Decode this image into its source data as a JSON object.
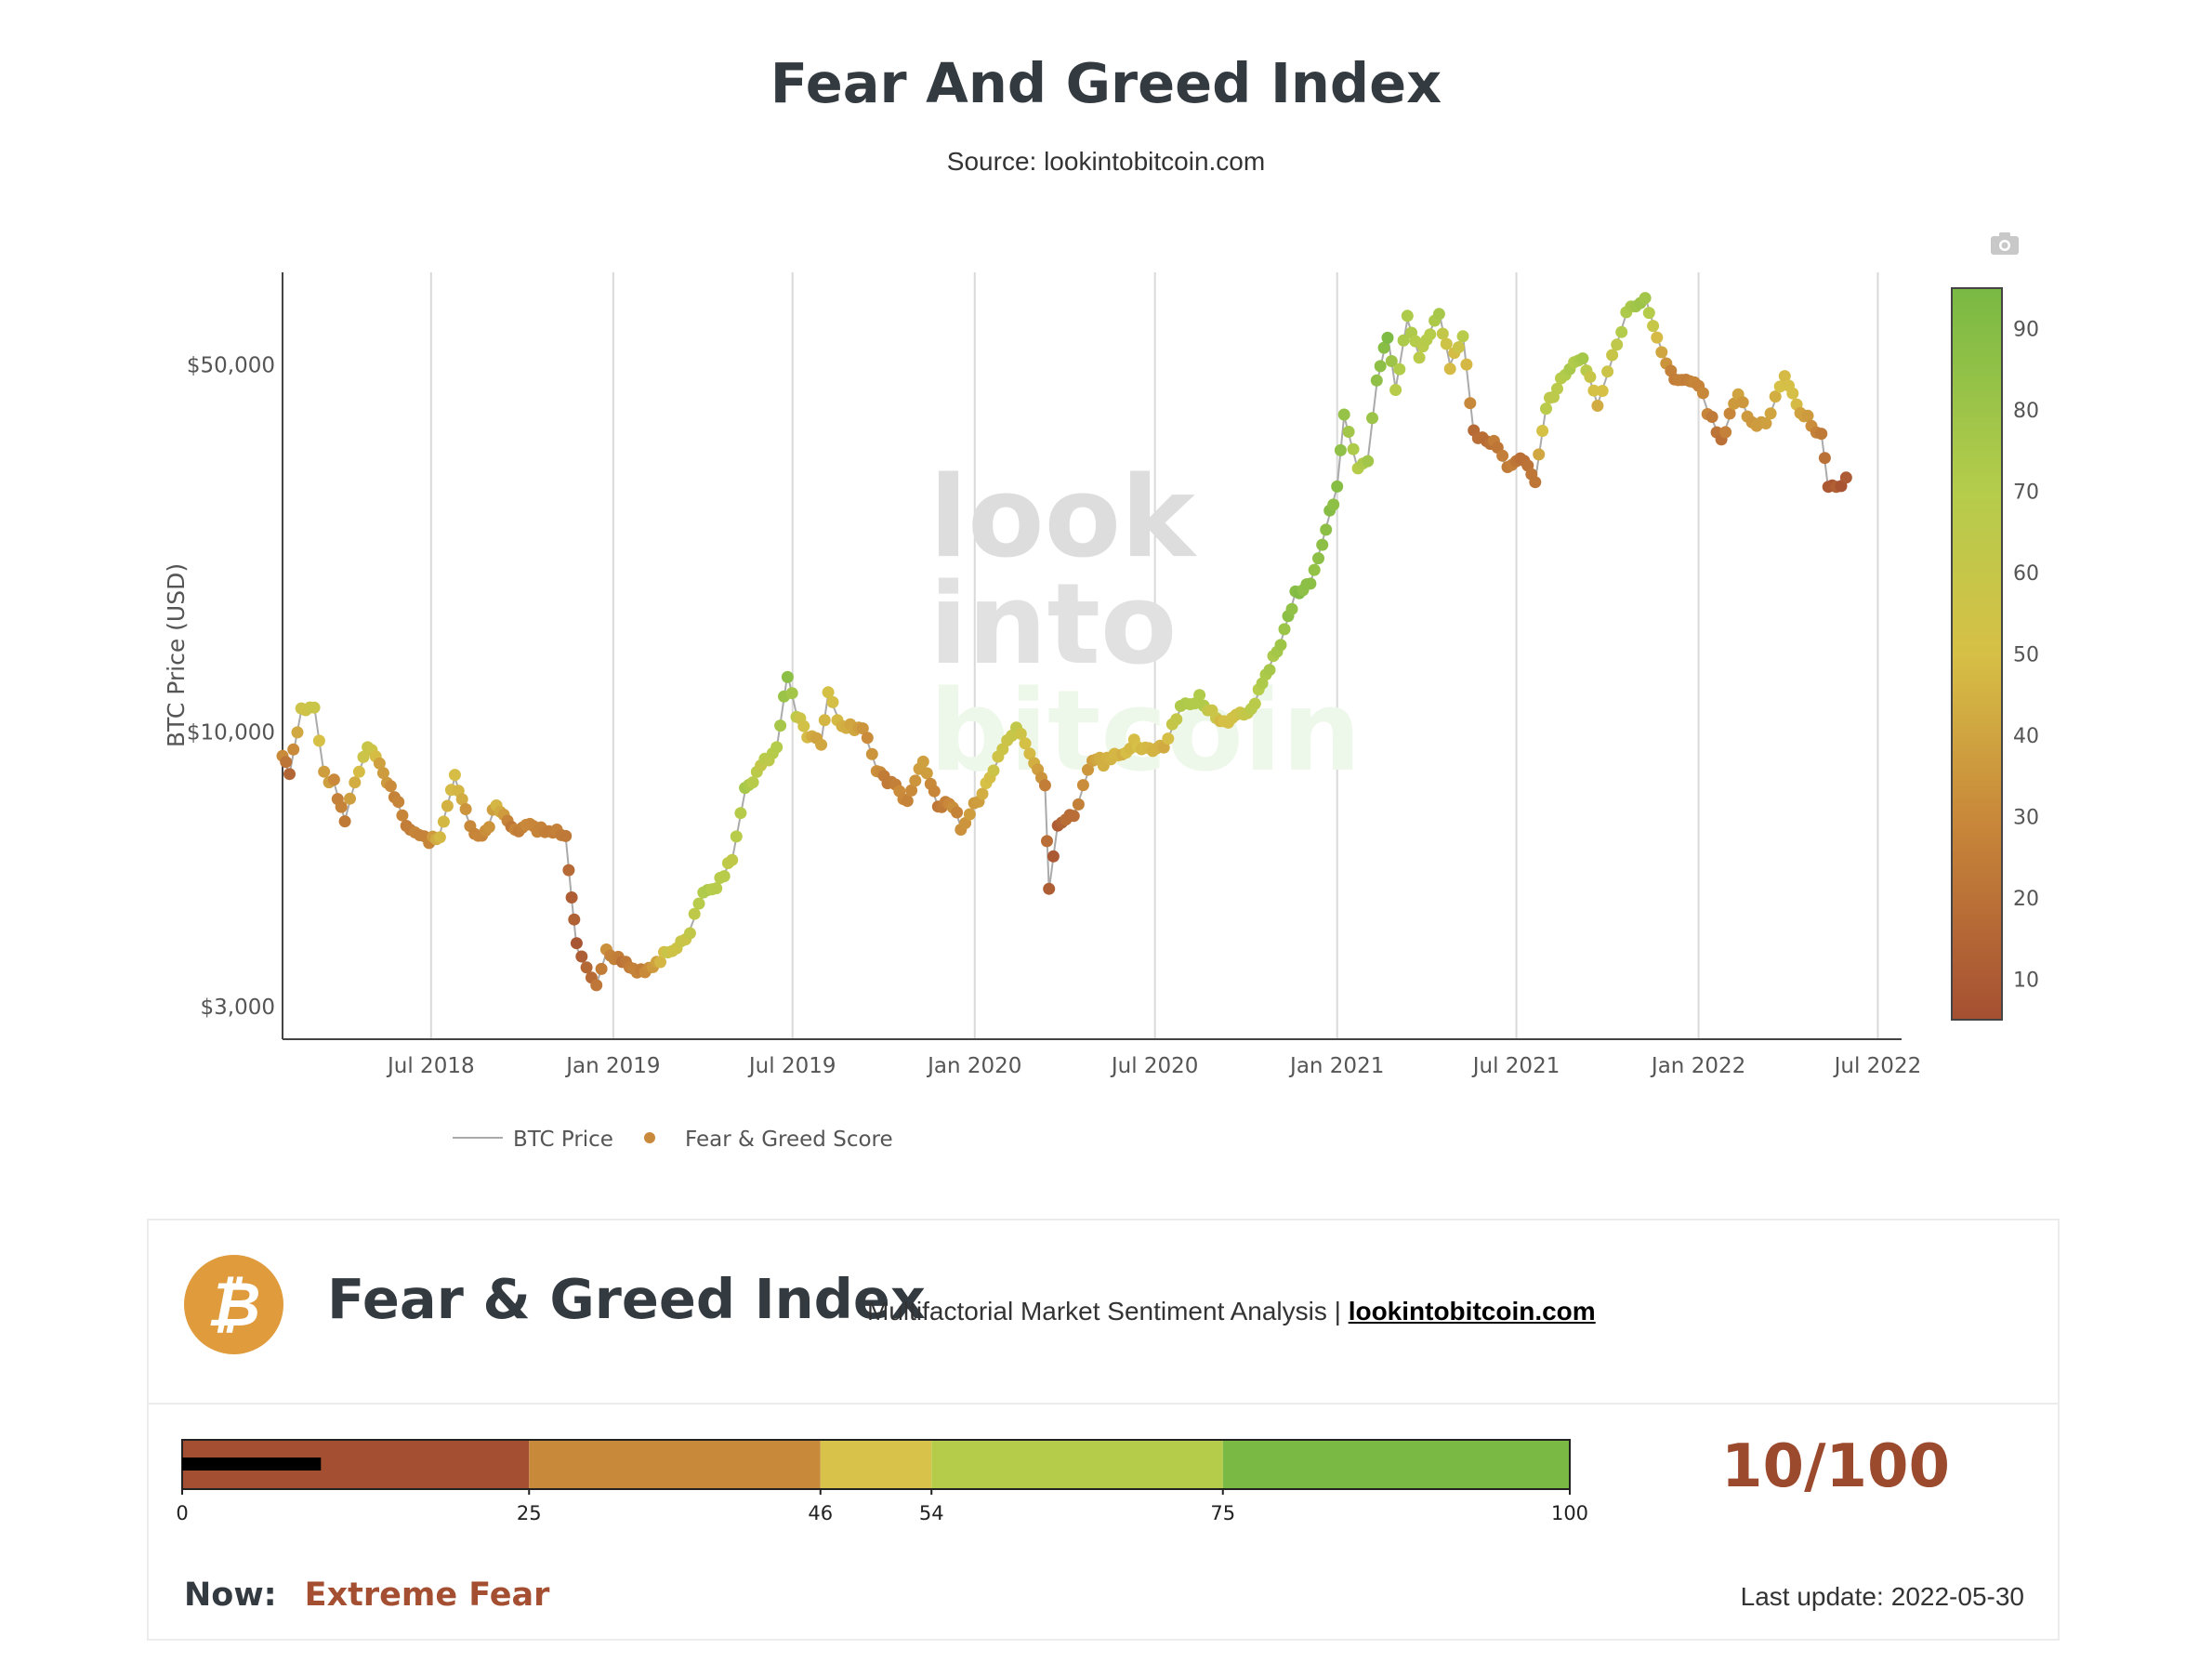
{
  "header": {
    "title": "Fear And Greed Index",
    "subtitle": "Source: lookintobitcoin.com"
  },
  "watermark": "lookintobitcoin",
  "chart_data": {
    "type": "line",
    "title": "Fear And Greed Index",
    "ylabel": "BTC Price (USD)",
    "yscale": "log",
    "ylim": [
      2600,
      75000
    ],
    "xlim": [
      "2018-02-01",
      "2022-07-25"
    ],
    "yticks": [
      3000,
      10000,
      50000
    ],
    "ytick_labels": [
      "$3,000",
      "$10,000",
      "$50,000"
    ],
    "xticks": [
      "2018-07-01",
      "2019-01-01",
      "2019-07-01",
      "2020-01-01",
      "2020-07-01",
      "2021-01-01",
      "2021-07-01",
      "2022-01-01",
      "2022-07-01"
    ],
    "xtick_labels": [
      "Jul 2018",
      "Jan 2019",
      "Jul 2019",
      "Jan 2020",
      "Jul 2020",
      "Jan 2021",
      "Jul 2021",
      "Jan 2022",
      "Jul 2022"
    ],
    "grid": true,
    "legend_position": "bottom-left",
    "colorbar": {
      "ticks": [
        10,
        20,
        30,
        40,
        50,
        60,
        70,
        80,
        90
      ],
      "range": [
        5,
        95
      ],
      "color_stops": [
        {
          "value": 5,
          "color": "#a54f32"
        },
        {
          "value": 30,
          "color": "#c9893a"
        },
        {
          "value": 50,
          "color": "#d6c046"
        },
        {
          "value": 70,
          "color": "#b5cc4b"
        },
        {
          "value": 95,
          "color": "#79b944"
        }
      ]
    },
    "series": [
      {
        "name": "BTC Price",
        "mode": "line",
        "color": "#999999",
        "x": [
          "2018-02-01",
          "2018-02-08",
          "2018-02-20",
          "2018-03-05",
          "2018-03-15",
          "2018-03-25",
          "2018-04-05",
          "2018-04-15",
          "2018-04-28",
          "2018-05-10",
          "2018-05-25",
          "2018-06-10",
          "2018-06-29",
          "2018-07-10",
          "2018-07-25",
          "2018-08-05",
          "2018-08-14",
          "2018-08-25",
          "2018-09-05",
          "2018-09-20",
          "2018-10-05",
          "2018-10-20",
          "2018-11-05",
          "2018-11-14",
          "2018-11-20",
          "2018-11-25",
          "2018-12-05",
          "2018-12-15",
          "2018-12-25",
          "2019-01-10",
          "2019-01-25",
          "2019-02-10",
          "2019-02-25",
          "2019-03-15",
          "2019-04-02",
          "2019-04-15",
          "2019-05-01",
          "2019-05-14",
          "2019-05-30",
          "2019-06-15",
          "2019-06-26",
          "2019-07-05",
          "2019-07-16",
          "2019-07-30",
          "2019-08-06",
          "2019-08-20",
          "2019-09-10",
          "2019-09-24",
          "2019-10-05",
          "2019-10-25",
          "2019-11-10",
          "2019-11-25",
          "2019-12-10",
          "2019-12-18",
          "2020-01-05",
          "2020-01-20",
          "2020-02-12",
          "2020-03-01",
          "2020-03-12",
          "2020-03-16",
          "2020-03-25",
          "2020-04-10",
          "2020-04-29",
          "2020-05-10",
          "2020-05-25",
          "2020-06-10",
          "2020-06-25",
          "2020-07-10",
          "2020-07-27",
          "2020-08-15",
          "2020-09-05",
          "2020-09-25",
          "2020-10-10",
          "2020-10-21",
          "2020-11-05",
          "2020-11-20",
          "2020-12-05",
          "2020-12-17",
          "2021-01-01",
          "2021-01-08",
          "2021-01-22",
          "2021-02-01",
          "2021-02-10",
          "2021-02-21",
          "2021-03-01",
          "2021-03-13",
          "2021-03-25",
          "2021-04-05",
          "2021-04-14",
          "2021-04-25",
          "2021-05-08",
          "2021-05-19",
          "2021-06-01",
          "2021-06-12",
          "2021-06-22",
          "2021-07-05",
          "2021-07-20",
          "2021-07-31",
          "2021-08-15",
          "2021-09-06",
          "2021-09-21",
          "2021-10-01",
          "2021-10-20",
          "2021-11-08",
          "2021-11-20",
          "2021-12-04",
          "2021-12-15",
          "2022-01-01",
          "2022-01-10",
          "2022-01-24",
          "2022-02-10",
          "2022-02-24",
          "2022-03-10",
          "2022-03-29",
          "2022-04-10",
          "2022-04-25",
          "2022-05-05",
          "2022-05-12",
          "2022-05-20",
          "2022-05-30"
        ],
        "values": [
          9000,
          8300,
          11000,
          11200,
          8300,
          8000,
          6800,
          8000,
          9300,
          8700,
          7500,
          6500,
          6200,
          6400,
          8200,
          7000,
          6300,
          6400,
          7300,
          6500,
          6600,
          6500,
          6400,
          6300,
          4800,
          3900,
          3500,
          3300,
          3800,
          3700,
          3500,
          3600,
          3800,
          4000,
          4900,
          5100,
          5700,
          7700,
          8600,
          9300,
          12900,
          10800,
          9800,
          9600,
          11800,
          10200,
          10200,
          8500,
          8100,
          7400,
          8800,
          7200,
          7300,
          6600,
          7400,
          8500,
          10200,
          8600,
          7900,
          5000,
          6700,
          6900,
          8900,
          8700,
          9000,
          9600,
          9200,
          9300,
          11100,
          11600,
          10300,
          10700,
          11400,
          12900,
          14800,
          18400,
          19200,
          23000,
          29300,
          40000,
          31500,
          33000,
          46000,
          57000,
          45000,
          61000,
          52000,
          58000,
          63000,
          50000,
          57000,
          37000,
          36000,
          35000,
          31500,
          33500,
          30000,
          41500,
          47000,
          52000,
          42000,
          48000,
          62500,
          67500,
          56500,
          48000,
          47000,
          46000,
          41000,
          36000,
          44000,
          38500,
          38500,
          47500,
          42000,
          38500,
          37000,
          29000,
          29300,
          30500
        ],
        "fg": [
          30,
          15,
          55,
          60,
          40,
          30,
          25,
          45,
          60,
          40,
          30,
          25,
          30,
          45,
          50,
          35,
          25,
          30,
          45,
          25,
          30,
          30,
          25,
          20,
          12,
          10,
          15,
          20,
          30,
          20,
          25,
          35,
          55,
          60,
          70,
          70,
          65,
          75,
          65,
          72,
          85,
          65,
          45,
          40,
          50,
          45,
          35,
          30,
          25,
          30,
          40,
          25,
          30,
          30,
          40,
          55,
          60,
          45,
          25,
          10,
          12,
          20,
          40,
          45,
          45,
          50,
          45,
          45,
          70,
          75,
          50,
          55,
          70,
          72,
          80,
          90,
          85,
          85,
          90,
          85,
          70,
          80,
          85,
          90,
          70,
          75,
          65,
          68,
          75,
          45,
          65,
          15,
          20,
          25,
          25,
          20,
          25,
          65,
          70,
          75,
          40,
          55,
          75,
          80,
          50,
          25,
          28,
          25,
          30,
          20,
          40,
          35,
          40,
          50,
          45,
          30,
          25,
          10,
          10,
          10
        ]
      },
      {
        "name": "Fear & Greed Score",
        "mode": "markers",
        "color_by": "fg"
      }
    ]
  },
  "legend": {
    "btc_label": "BTC Price",
    "fg_label": "Fear & Greed Score",
    "fg_color": "#c8893a"
  },
  "card": {
    "logo_symbol": "₿",
    "logo_color": "#e09b3d",
    "title": "Fear & Greed Index",
    "tagline_text": "Multifactorial Market Sentiment Analysis |",
    "tagline_link": "lookintobitcoin.com",
    "gauge": {
      "value": 10,
      "max": 100,
      "segments": [
        {
          "from": 0,
          "to": 25,
          "color": "#a54f32"
        },
        {
          "from": 25,
          "to": 46,
          "color": "#c8893a"
        },
        {
          "from": 46,
          "to": 54,
          "color": "#d9c24a"
        },
        {
          "from": 54,
          "to": 75,
          "color": "#b5cc4b"
        },
        {
          "from": 75,
          "to": 100,
          "color": "#79b944"
        }
      ],
      "tick_labels": [
        "0",
        "25",
        "46",
        "54",
        "75",
        "100"
      ]
    },
    "score_text": "10/100",
    "now_label": "Now:",
    "now_value": "Extreme Fear",
    "last_update_label": "Last update:",
    "last_update_value": "2022-05-30"
  }
}
